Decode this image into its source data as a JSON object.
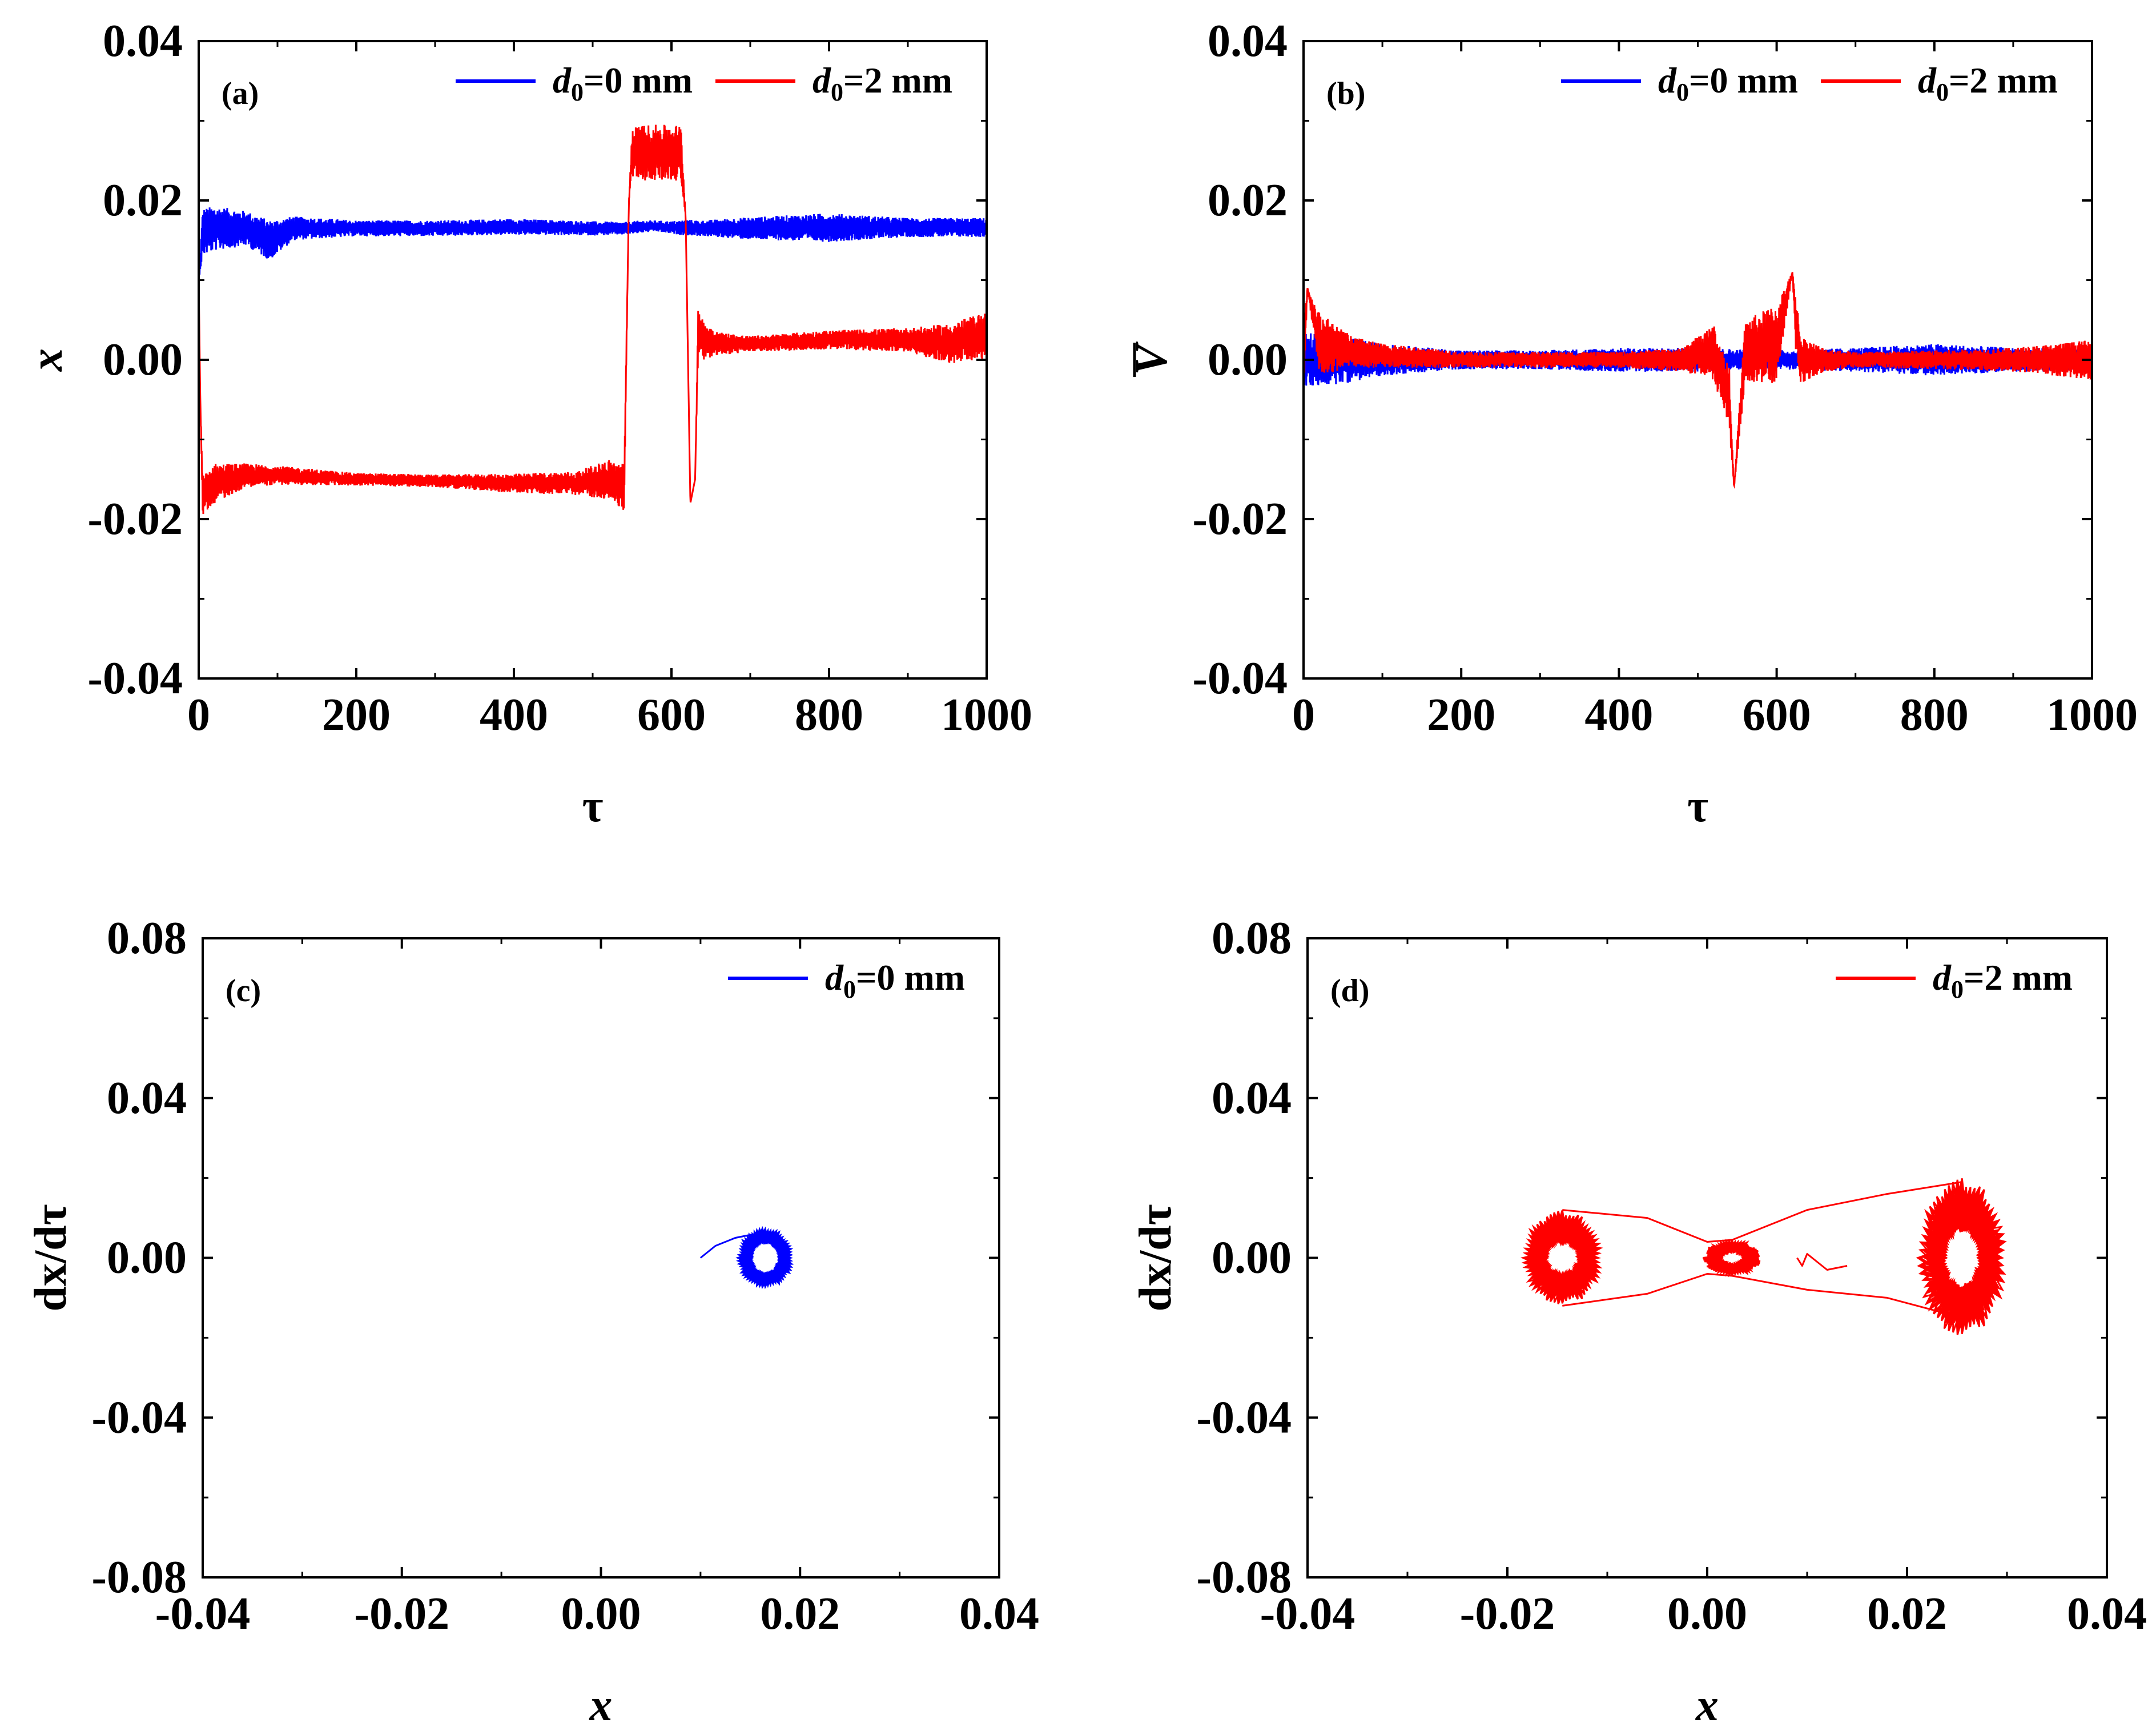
{
  "chart_data": [
    {
      "panel": "(a)",
      "type": "line",
      "xlabel": "τ",
      "ylabel": "x",
      "xlim": [
        0,
        1000
      ],
      "ylim": [
        -0.04,
        0.04
      ],
      "xticks": [
        "0",
        "200",
        "400",
        "600",
        "800",
        "1000"
      ],
      "yticks": [
        "-0.04",
        "-0.02",
        "0.00",
        "0.02",
        "0.04"
      ],
      "grid": false,
      "legend_position": "top-right",
      "series": [
        {
          "name": "d0=0 mm",
          "legend_main": "d",
          "legend_sub": "0",
          "legend_rest": "=0 mm",
          "color": "#0000ff",
          "x": [
            0,
            5,
            20,
            60,
            90,
            120,
            200,
            300,
            400,
            500,
            540,
            545,
            560,
            580,
            600,
            620,
            640,
            700,
            800,
            900,
            1000
          ],
          "y": [
            0.01,
            0.016,
            0.0165,
            0.0165,
            0.015,
            0.0165,
            0.0165,
            0.0165,
            0.0167,
            0.0165,
            0.0165,
            0.0165,
            0.0167,
            0.0168,
            0.0166,
            0.0166,
            0.0165,
            0.0165,
            0.0166,
            0.0166,
            0.0166
          ],
          "amplitude": [
            0,
            0.003,
            0.0028,
            0.0022,
            0.0025,
            0.0015,
            0.001,
            0.001,
            0.001,
            0.0009,
            0.0008,
            0.0008,
            0.0008,
            0.0007,
            0.0008,
            0.001,
            0.001,
            0.0014,
            0.0018,
            0.0012,
            0.0012
          ]
        },
        {
          "name": "d0=2 mm",
          "legend_main": "d",
          "legend_sub": "0",
          "legend_rest": "=2 mm",
          "color": "#ff0000",
          "x": [
            0,
            2,
            5,
            20,
            60,
            100,
            200,
            300,
            400,
            480,
            520,
            540,
            546,
            550,
            560,
            580,
            600,
            612,
            618,
            624,
            630,
            634,
            640,
            660,
            700,
            800,
            900,
            950,
            1000
          ],
          "y": [
            0.01,
            -0.005,
            -0.017,
            -0.0155,
            -0.0145,
            -0.0145,
            -0.015,
            -0.0152,
            -0.0155,
            -0.0155,
            -0.015,
            -0.016,
            0.02,
            0.026,
            0.026,
            0.026,
            0.026,
            0.026,
            0.018,
            -0.018,
            -0.015,
            0.004,
            0.0025,
            0.002,
            0.002,
            0.0025,
            0.0025,
            0.002,
            0.003
          ],
          "amplitude": [
            0,
            0,
            0.0025,
            0.0025,
            0.0015,
            0.0012,
            0.0008,
            0.0008,
            0.0012,
            0.0015,
            0.0025,
            0.003,
            0,
            0.003,
            0.0035,
            0.0035,
            0.0035,
            0.0035,
            0,
            0,
            0,
            0.003,
            0.0025,
            0.0015,
            0.001,
            0.0012,
            0.0015,
            0.0025,
            0.003
          ]
        }
      ]
    },
    {
      "panel": "(b)",
      "type": "line",
      "xlabel": "τ",
      "ylabel": "V",
      "xlim": [
        0,
        1000
      ],
      "ylim": [
        -0.04,
        0.04
      ],
      "xticks": [
        "0",
        "200",
        "400",
        "600",
        "800",
        "1000"
      ],
      "yticks": [
        "-0.04",
        "-0.02",
        "0.00",
        "0.02",
        "0.04"
      ],
      "grid": false,
      "legend_position": "top-right",
      "series": [
        {
          "name": "d0=0 mm",
          "legend_main": "d",
          "legend_sub": "0",
          "legend_rest": "=0 mm",
          "color": "#0000ff",
          "x": [
            0,
            50,
            100,
            200,
            300,
            400,
            500,
            600,
            700,
            800,
            900,
            1000
          ],
          "y": [
            0,
            0,
            0,
            0,
            0,
            0,
            0,
            0,
            0,
            0,
            0,
            0
          ],
          "amplitude": [
            0.0035,
            0.003,
            0.002,
            0.0012,
            0.0012,
            0.0015,
            0.0015,
            0.0012,
            0.0015,
            0.002,
            0.0015,
            0.0015
          ]
        },
        {
          "name": "d0=2 mm",
          "legend_main": "d",
          "legend_sub": "0",
          "legend_rest": "=2 mm",
          "color": "#ff0000",
          "x": [
            0,
            5,
            20,
            60,
            100,
            200,
            300,
            400,
            480,
            520,
            540,
            546,
            560,
            600,
            620,
            624,
            630,
            660,
            700,
            800,
            900,
            1000
          ],
          "y": [
            0,
            0.009,
            0.002,
            0.001,
            0.0005,
            0,
            0,
            0,
            0,
            0.001,
            -0.005,
            -0.016,
            0.001,
            0.002,
            0.011,
            0.005,
            0,
            0,
            0,
            0,
            0,
            0
          ],
          "amplitude": [
            0.005,
            0,
            0.004,
            0.002,
            0.0015,
            0.001,
            0.001,
            0.001,
            0.0015,
            0.0035,
            0.004,
            0,
            0.004,
            0.005,
            0,
            0.004,
            0.003,
            0.0015,
            0.001,
            0.0012,
            0.0015,
            0.0025
          ]
        }
      ]
    },
    {
      "panel": "(c)",
      "type": "line",
      "xlabel": "x",
      "ylabel": "dx/dτ",
      "xlim": [
        -0.04,
        0.04
      ],
      "ylim": [
        -0.08,
        0.08
      ],
      "xticks": [
        "-0.04",
        "-0.02",
        "0.00",
        "0.02",
        "0.04"
      ],
      "yticks": [
        "-0.08",
        "-0.04",
        "0.00",
        "0.04",
        "0.08"
      ],
      "grid": false,
      "legend_position": "top-right",
      "series": [
        {
          "name": "d0=0 mm",
          "legend_main": "d",
          "legend_sub": "0",
          "legend_rest": "=0 mm",
          "color": "#0000ff",
          "attractors": [
            {
              "cx": 0.0165,
              "cy": 0.0,
              "rx_min": 0.001,
              "rx_max": 0.0028,
              "ry_min": 0.003,
              "ry_max": 0.0075,
              "loops": 30
            }
          ],
          "transient": {
            "x": [
              0.01,
              0.0115,
              0.0135,
              0.0155
            ],
            "y": [
              0.0,
              0.003,
              0.005,
              0.006
            ]
          }
        }
      ]
    },
    {
      "panel": "(d)",
      "type": "line",
      "xlabel": "x",
      "ylabel": "dx/dτ",
      "xlim": [
        -0.04,
        0.04
      ],
      "ylim": [
        -0.08,
        0.08
      ],
      "xticks": [
        "-0.04",
        "-0.02",
        "0.00",
        "0.02",
        "0.04"
      ],
      "yticks": [
        "-0.08",
        "-0.04",
        "0.00",
        "0.04",
        "0.08"
      ],
      "grid": false,
      "legend_position": "top-right",
      "series": [
        {
          "name": "d0=2 mm",
          "legend_main": "d",
          "legend_sub": "0",
          "legend_rest": "=2 mm",
          "color": "#ff0000",
          "attractors": [
            {
              "cx": -0.0145,
              "cy": 0.0,
              "rx_min": 0.001,
              "rx_max": 0.004,
              "ry_min": 0.002,
              "ry_max": 0.012,
              "loops": 35
            },
            {
              "cx": 0.0025,
              "cy": 0.0,
              "rx_min": 0.0005,
              "rx_max": 0.003,
              "ry_min": 0.0008,
              "ry_max": 0.0045,
              "loops": 20
            },
            {
              "cx": 0.0255,
              "cy": 0.0,
              "rx_min": 0.001,
              "rx_max": 0.0045,
              "ry_min": 0.004,
              "ry_max": 0.02,
              "loops": 40
            }
          ],
          "bridges": [
            {
              "x": [
                -0.0145,
                -0.006,
                0.0,
                0.0025
              ],
              "y": [
                0.012,
                0.01,
                0.004,
                0.0045
              ]
            },
            {
              "x": [
                0.0025,
                0.01,
                0.018,
                0.0255
              ],
              "y": [
                0.0045,
                0.012,
                0.016,
                0.019
              ]
            },
            {
              "x": [
                0.0025,
                0.01,
                0.018,
                0.0255
              ],
              "y": [
                -0.0045,
                -0.008,
                -0.01,
                -0.015
              ]
            },
            {
              "x": [
                -0.0145,
                -0.006,
                0.0,
                0.0025
              ],
              "y": [
                -0.012,
                -0.009,
                -0.004,
                -0.0045
              ]
            },
            {
              "x": [
                0.009,
                0.0095,
                0.01,
                0.012,
                0.014
              ],
              "y": [
                0.0,
                -0.002,
                0.001,
                -0.003,
                -0.002
              ]
            }
          ]
        }
      ]
    }
  ]
}
